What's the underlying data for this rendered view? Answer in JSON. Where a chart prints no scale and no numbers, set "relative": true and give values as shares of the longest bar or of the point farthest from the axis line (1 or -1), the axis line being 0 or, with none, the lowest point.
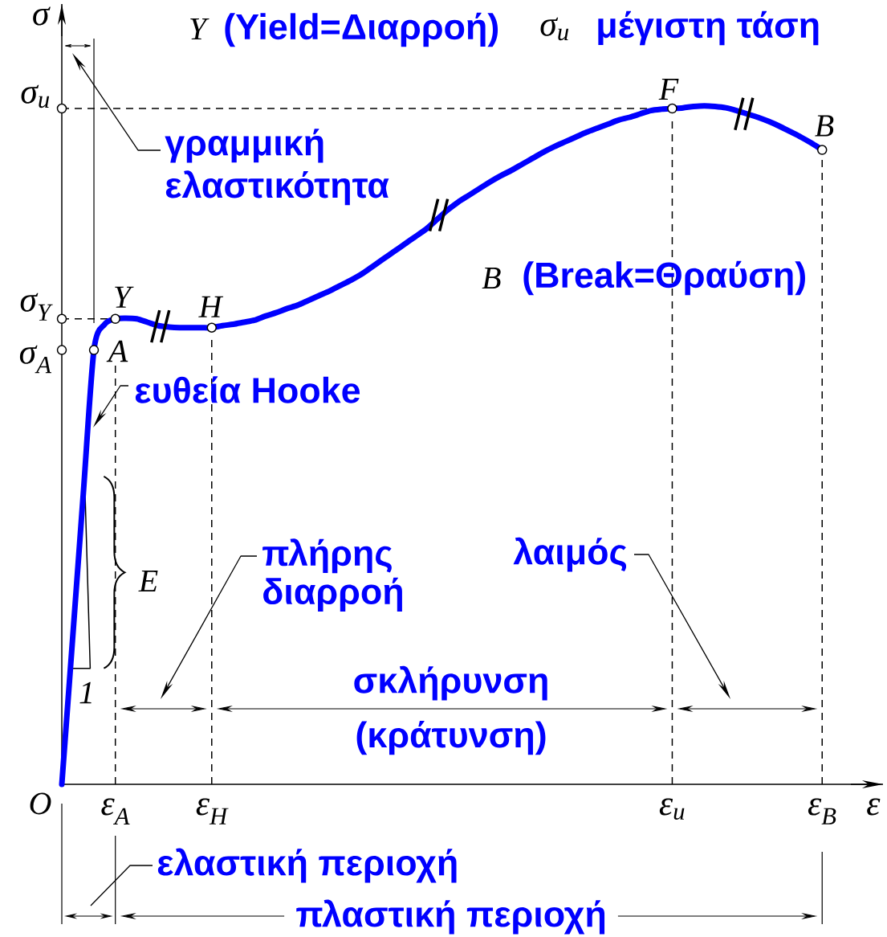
{
  "chart_data": {
    "type": "line",
    "relative": true,
    "xlabel": "ε",
    "ylabel": "σ",
    "categories": [
      null,
      null,
      null,
      null,
      null,
      "ε$_{A}$",
      null,
      null,
      null,
      null,
      null,
      null,
      null,
      null,
      "ε$_{H}$",
      null,
      null,
      null,
      null,
      null,
      null,
      null,
      null,
      null,
      null,
      null,
      null,
      null,
      null,
      null,
      null,
      null,
      null,
      null,
      null,
      null,
      null,
      null,
      null,
      null,
      null,
      null,
      null,
      null,
      null,
      null,
      null,
      null,
      null,
      null,
      null,
      null,
      null,
      null,
      null,
      null,
      null,
      "ε$_{u}$",
      null,
      null,
      null,
      null,
      null,
      null,
      null,
      null,
      null,
      null,
      null,
      null,
      null,
      "ε$_{B}$"
    ],
    "series": [
      {
        "color": "#0000ff",
        "values": [
          0,
          0.213,
          0.427,
          0.64,
          0.678,
          0.686,
          0.687,
          0.686,
          0.681,
          0.676,
          0.674,
          0.673,
          0.673,
          0.673,
          0.673,
          0.676,
          0.678,
          0.681,
          0.684,
          0.69,
          0.695,
          0.701,
          0.706,
          0.713,
          0.72,
          0.727,
          0.735,
          0.743,
          0.752,
          0.763,
          0.774,
          0.785,
          0.796,
          0.807,
          0.818,
          0.832,
          0.846,
          0.858,
          0.868,
          0.878,
          0.888,
          0.897,
          0.905,
          0.914,
          0.923,
          0.932,
          0.94,
          0.947,
          0.954,
          0.961,
          0.967,
          0.973,
          0.979,
          0.983,
          0.988,
          0.993,
          0.995,
          0.996,
          0.997,
          0.999,
          1.0,
          0.999,
          0.997,
          0.993,
          0.988,
          0.983,
          0.977,
          0.97,
          0.962,
          0.954,
          0.945,
          0.935
        ]
      },
      {
        "type": "scatter",
        "color": "#000000",
        "marker": "circle",
        "values": [
          null,
          null,
          null,
          0.64,
          null,
          0.686,
          null,
          null,
          null,
          null,
          null,
          null,
          null,
          null,
          0.673,
          null,
          null,
          null,
          null,
          null,
          null,
          null,
          null,
          null,
          null,
          null,
          null,
          null,
          null,
          null,
          null,
          null,
          null,
          null,
          null,
          null,
          null,
          null,
          null,
          null,
          null,
          null,
          null,
          null,
          null,
          null,
          null,
          null,
          null,
          null,
          null,
          null,
          null,
          null,
          null,
          null,
          null,
          0.996,
          null,
          null,
          null,
          null,
          null,
          null,
          null,
          null,
          null,
          null,
          null,
          null,
          null,
          0.935
        ]
      },
      {
        "type": "scatter",
        "color": "#000000",
        "marker": "circle",
        "values": [
          0.996,
          null,
          null,
          null,
          null,
          null,
          null,
          null,
          null,
          null,
          null,
          null,
          null,
          null,
          null,
          null,
          null,
          null,
          null,
          null,
          null,
          null,
          null,
          null,
          null,
          null,
          null,
          null,
          null,
          null,
          null,
          null,
          null,
          null,
          null,
          null,
          null,
          null,
          null,
          null,
          null,
          null,
          null,
          null,
          null,
          null,
          null,
          null,
          null,
          null,
          null,
          null,
          null,
          null,
          null,
          null,
          null,
          null,
          null,
          null,
          null,
          null,
          null,
          null,
          null,
          null,
          null,
          null,
          null,
          null,
          null,
          null
        ]
      },
      {
        "type": "scatter",
        "color": "#000000",
        "marker": "circle",
        "values": [
          0.686,
          null,
          null,
          null,
          null,
          null,
          null,
          null,
          null,
          null,
          null,
          null,
          null,
          null,
          null,
          null,
          null,
          null,
          null,
          null,
          null,
          null,
          null,
          null,
          null,
          null,
          null,
          null,
          null,
          null,
          null,
          null,
          null,
          null,
          null,
          null,
          null,
          null,
          null,
          null,
          null,
          null,
          null,
          null,
          null,
          null,
          null,
          null,
          null,
          null,
          null,
          null,
          null,
          null,
          null,
          null,
          null,
          null,
          null,
          null,
          null,
          null,
          null,
          null,
          null,
          null,
          null,
          null,
          null,
          null,
          null,
          null
        ]
      },
      {
        "type": "scatter",
        "color": "#000000",
        "marker": "circle",
        "values": [
          0.64,
          null,
          null,
          null,
          null,
          null,
          null,
          null,
          null,
          null,
          null,
          null,
          null,
          null,
          null,
          null,
          null,
          null,
          null,
          null,
          null,
          null,
          null,
          null,
          null,
          null,
          null,
          null,
          null,
          null,
          null,
          null,
          null,
          null,
          null,
          null,
          null,
          null,
          null,
          null,
          null,
          null,
          null,
          null,
          null,
          null,
          null,
          null,
          null,
          null,
          null,
          null,
          null,
          null,
          null,
          null,
          null,
          null,
          null,
          null,
          null,
          null,
          null,
          null,
          null,
          null,
          null,
          null,
          null,
          null,
          null,
          null
        ]
      }
    ],
    "ref_lines": [
      {
        "axis": "y",
        "value": 0.996,
        "label": "σ$_{u}$",
        "line_style": "dashed"
      },
      {
        "axis": "y",
        "value": 0.686,
        "label": "σ$_{Y}$",
        "line_style": "dashed"
      },
      {
        "axis": "x",
        "value": "ε$_{A}$",
        "line_style": "dashed"
      },
      {
        "axis": "x",
        "value": "ε$_{H}$",
        "line_style": "dashed"
      },
      {
        "axis": "x",
        "value": "ε$_{u}$",
        "line_style": "dashed"
      },
      {
        "axis": "x",
        "value": "ε$_{B}$",
        "line_style": "dashed"
      }
    ],
    "annotations": [
      "Y",
      "(Yield=Διαρροή)",
      "σ$_{u}$",
      "μέγιστη τάση",
      "B",
      "(Break=Θραύση)",
      "γραμμική ελαστικότητα",
      "ευθεία Hooke",
      "E",
      "1",
      "πλήρης διαρροή",
      "σκλήρυνση (κράτυνση)",
      "λαιμός",
      "ελαστική περιοχή",
      "πλαστική περιοχή",
      "O",
      "A",
      {
        "text": "Y",
        "y": 0.686
      },
      {
        "text": "H",
        "y": 0.673
      },
      {
        "text": "F",
        "y": 0.996
      },
      {
        "text": "B",
        "y": 0.935
      },
      "σ$_{A}$"
    ]
  }
}
